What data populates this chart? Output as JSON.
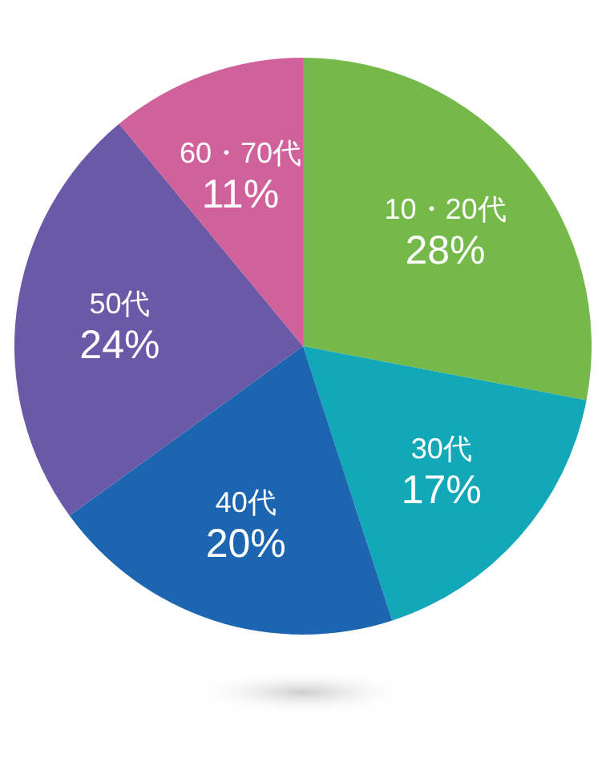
{
  "chart_data": {
    "type": "pie",
    "categories": [
      "10・20代",
      "30代",
      "40代",
      "50代",
      "60・70代"
    ],
    "values": [
      28,
      17,
      20,
      24,
      11
    ],
    "colors": [
      "#76b94b",
      "#13a8b8",
      "#1c65b1",
      "#6a59a6",
      "#d1619b"
    ],
    "value_labels": [
      "28%",
      "17%",
      "20%",
      "24%",
      "11%"
    ]
  }
}
